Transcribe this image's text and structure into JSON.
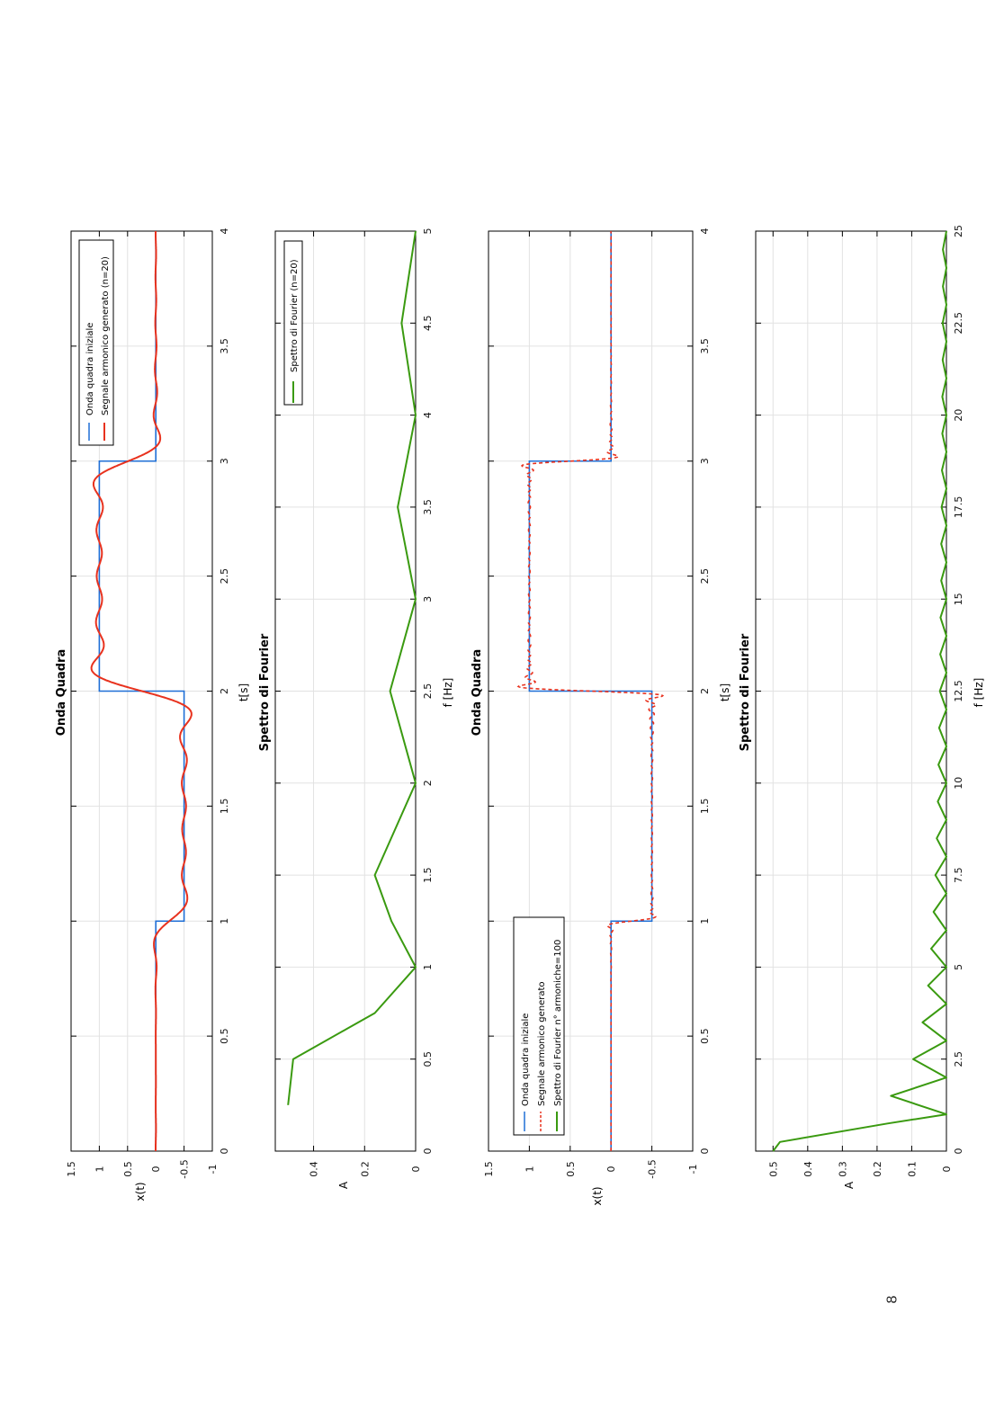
{
  "page_number": "8",
  "colors": {
    "square": "#1f6fd6",
    "harmonic": "#e8321e",
    "spectrum": "#3a9a10",
    "grid": "#e2e2e2",
    "axis": "#000000"
  },
  "chart_data": [
    {
      "type": "line",
      "title": "Onda Quadra",
      "xlabel": "t[s]",
      "ylabel": "x(t)",
      "xlim": [
        0,
        4
      ],
      "ylim": [
        -1,
        1.5
      ],
      "xticks": [
        "0",
        "0.5",
        "1",
        "1.5",
        "2",
        "2.5",
        "3",
        "3.5",
        "4"
      ],
      "yticks": [
        "-1",
        "-0.5",
        "0",
        "0.5",
        "1",
        "1.5"
      ],
      "grid": true,
      "legend_position": "top-right",
      "square_wave": {
        "breakpoints": [
          0,
          1,
          2,
          3,
          4
        ],
        "levels": [
          0,
          -0.5,
          1,
          0
        ]
      },
      "series": [
        {
          "name": "Onda quadra iniziale",
          "kind": "square",
          "style": "solid"
        },
        {
          "name": "Segnale armonico generato (n=20)",
          "kind": "fourier",
          "harmonics": 20,
          "style": "solid"
        }
      ]
    },
    {
      "type": "line",
      "title": "Spettro di Fourier",
      "xlabel": "f [Hz]",
      "ylabel": "A",
      "xlim": [
        0,
        5
      ],
      "ylim": [
        0,
        0.55
      ],
      "xticks": [
        "0",
        "0.5",
        "1",
        "1.5",
        "2",
        "2.5",
        "3",
        "3.5",
        "4",
        "4.5",
        "5"
      ],
      "yticks": [
        "0",
        "0.2",
        "0.4"
      ],
      "grid": true,
      "legend_position": "top-right",
      "series": [
        {
          "name": "Spettro di Fourier (n=20)",
          "x": [
            0.25,
            0.5,
            0.75,
            1,
            1.25,
            1.5,
            2,
            2.5,
            3,
            3.5,
            4,
            4.5,
            5
          ],
          "y": [
            0.5,
            0.48,
            0.16,
            0,
            0.095,
            0.16,
            0,
            0.1,
            0,
            0.07,
            0,
            0.055,
            0
          ]
        }
      ]
    },
    {
      "type": "line",
      "title": "Onda Quadra",
      "xlabel": "t[s]",
      "ylabel": "x(t)",
      "xlim": [
        0,
        4
      ],
      "ylim": [
        -1,
        1.5
      ],
      "xticks": [
        "0",
        "0.5",
        "1",
        "1.5",
        "2",
        "2.5",
        "3",
        "3.5",
        "4"
      ],
      "yticks": [
        "-1",
        "-0.5",
        "0",
        "0.5",
        "1",
        "1.5"
      ],
      "grid": true,
      "legend_position": "bottom-left",
      "square_wave": {
        "breakpoints": [
          0,
          1,
          2,
          3,
          4
        ],
        "levels": [
          0,
          -0.5,
          1,
          0
        ]
      },
      "series": [
        {
          "name": "Onda quadra iniziale",
          "kind": "square",
          "style": "solid"
        },
        {
          "name": "Segnale armonico generato",
          "kind": "fourier",
          "harmonics": 100,
          "style": "dashed"
        },
        {
          "name": "Spettro di Fourier n° armoniche=100",
          "kind": "legend-only"
        }
      ]
    },
    {
      "type": "line",
      "title": "Spettro di Fourier",
      "xlabel": "f [Hz]",
      "ylabel": "A",
      "xlim": [
        0,
        25
      ],
      "ylim": [
        0,
        0.55
      ],
      "xticks": [
        "0",
        "2.5",
        "5",
        "7.5",
        "10",
        "12.5",
        "15",
        "17.5",
        "20",
        "22.5",
        "25"
      ],
      "yticks": [
        "0",
        "0.1",
        "0.2",
        "0.3",
        "0.4",
        "0.5"
      ],
      "grid": true,
      "series": [
        {
          "name": "Spettro di Fourier",
          "x": [
            0,
            0.25,
            0.75,
            1,
            1.5,
            2,
            2.5,
            3,
            3.5,
            4,
            4.5,
            5,
            5.5,
            6,
            6.5,
            7,
            7.5,
            8,
            8.5,
            9,
            9.5,
            10,
            10.5,
            11,
            11.5,
            12,
            12.5,
            13,
            13.5,
            14,
            14.5,
            15,
            15.5,
            16,
            16.5,
            17,
            17.5,
            18,
            18.5,
            19,
            19.5,
            20,
            20.5,
            21,
            21.5,
            22,
            22.5,
            23,
            23.5,
            24,
            24.5,
            25
          ],
          "y": [
            0.5,
            0.48,
            0.17,
            0,
            0.16,
            0,
            0.096,
            0,
            0.069,
            0,
            0.053,
            0,
            0.044,
            0,
            0.037,
            0,
            0.032,
            0,
            0.028,
            0,
            0.025,
            0,
            0.023,
            0,
            0.021,
            0,
            0.019,
            0,
            0.018,
            0,
            0.017,
            0,
            0.015,
            0,
            0.015,
            0,
            0.014,
            0,
            0.013,
            0,
            0.012,
            0,
            0.012,
            0,
            0.011,
            0,
            0.011,
            0,
            0.01,
            0,
            0.01,
            0
          ]
        }
      ]
    }
  ]
}
